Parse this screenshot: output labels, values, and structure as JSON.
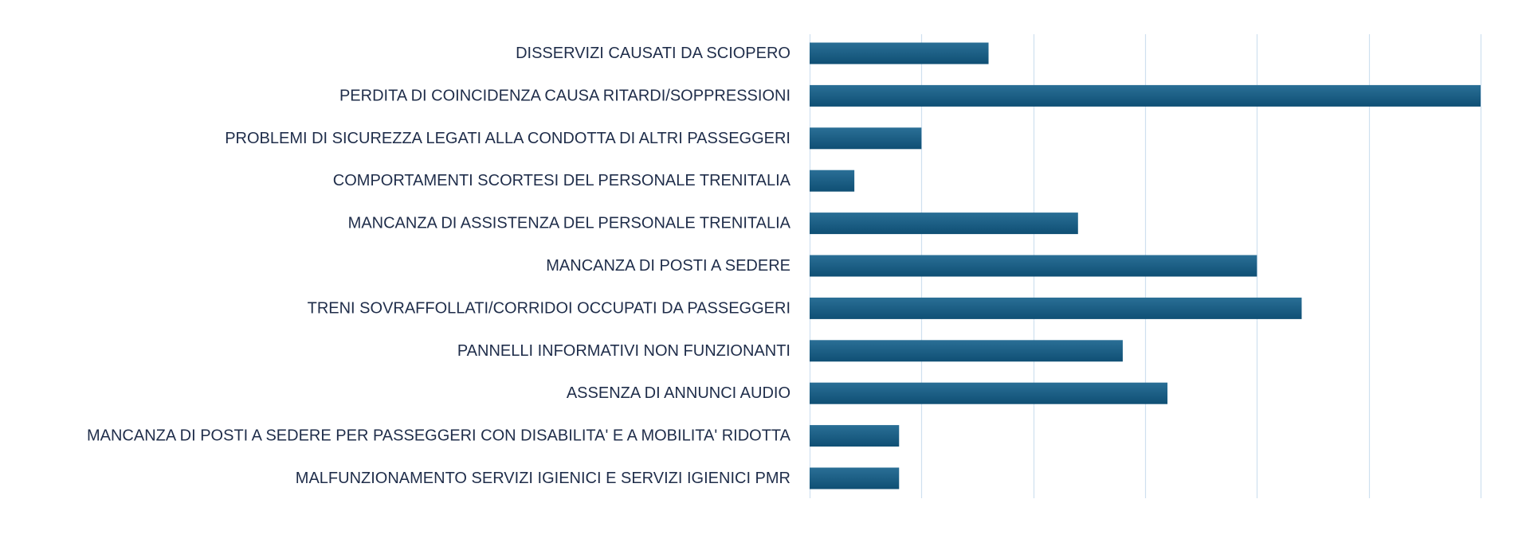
{
  "chart_data": {
    "type": "bar",
    "orientation": "horizontal",
    "categories": [
      "DISSERVIZI CAUSATI DA SCIOPERO",
      "PERDITA DI COINCIDENZA CAUSA RITARDI/SOPPRESSIONI",
      "PROBLEMI DI SICUREZZA LEGATI ALLA CONDOTTA DI ALTRI PASSEGGERI",
      "COMPORTAMENTI SCORTESI DEL PERSONALE TRENITALIA",
      "MANCANZA DI ASSISTENZA DEL PERSONALE TRENITALIA",
      "MANCANZA DI POSTI A SEDERE",
      "TRENI SOVRAFFOLLATI/CORRIDOI OCCUPATI DA PASSEGGERI",
      "PANNELLI INFORMATIVI NON FUNZIONANTI",
      "ASSENZA DI ANNUNCI AUDIO",
      "MANCANZA DI POSTI A SEDERE PER PASSEGGERI CON DISABILITA' E A MOBILITA' RIDOTTA",
      "MALFUNZIONAMENTO SERVIZI IGIENICI E SERVIZI IGIENICI PMR"
    ],
    "values": [
      8,
      30,
      5,
      2,
      12,
      20,
      22,
      14,
      16,
      4,
      4
    ],
    "xlim": [
      0,
      30
    ],
    "gridlines": [
      0,
      5,
      10,
      15,
      20,
      25,
      30
    ],
    "grid": true,
    "legend": "none",
    "title": "",
    "xlabel": "",
    "ylabel": "",
    "bar_color_top": "#2a6f96",
    "bar_color_bottom": "#0f4f74",
    "label_color": "#1f2d4a",
    "grid_color": "#cfe0ef"
  }
}
